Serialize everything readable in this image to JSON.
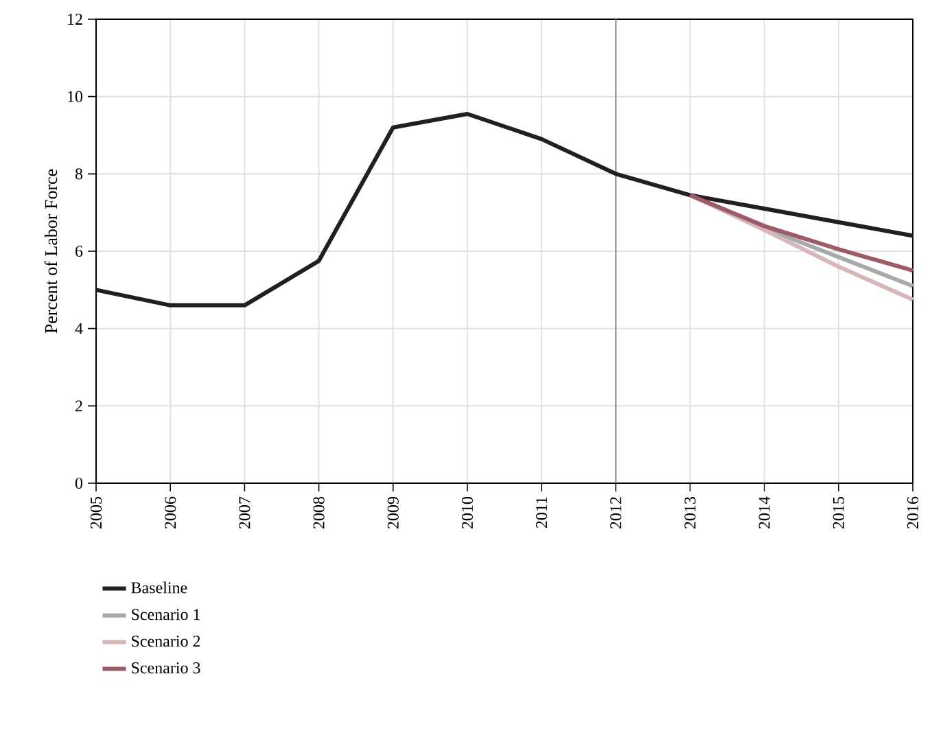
{
  "chart_data": {
    "type": "line",
    "ylabel": "Percent of Labor Force",
    "xlim": [
      2005,
      2016
    ],
    "xticks": [
      2005,
      2006,
      2007,
      2008,
      2009,
      2010,
      2011,
      2012,
      2013,
      2014,
      2015,
      2016
    ],
    "ylim": [
      0,
      12
    ],
    "yticks": [
      0,
      2,
      4,
      6,
      8,
      10,
      12
    ],
    "grid": true,
    "legend": "bottom left",
    "ref_lines": [
      {
        "axis": "x",
        "value": 2012,
        "color": "#8c8c8c"
      }
    ],
    "series": [
      {
        "name": "Baseline",
        "color": "#231f20",
        "x": [
          2005,
          2006,
          2007,
          2008,
          2009,
          2010,
          2011,
          2012,
          2013,
          2014,
          2015,
          2016
        ],
        "values": [
          5.0,
          4.6,
          4.6,
          5.75,
          9.2,
          9.55,
          8.9,
          8.0,
          7.45,
          7.1,
          6.75,
          6.4
        ]
      },
      {
        "name": "Scenario 1",
        "color": "#a7a9ac",
        "x": [
          2013,
          2014,
          2015,
          2016
        ],
        "values": [
          7.45,
          6.6,
          5.85,
          5.1
        ]
      },
      {
        "name": "Scenario 2",
        "color": "#d7b5b9",
        "x": [
          2013,
          2014,
          2015,
          2016
        ],
        "values": [
          7.45,
          6.55,
          5.6,
          4.75
        ]
      },
      {
        "name": "Scenario 3",
        "color": "#9b5b67",
        "x": [
          2013,
          2014,
          2015,
          2016
        ],
        "values": [
          7.45,
          6.65,
          6.05,
          5.5
        ]
      }
    ]
  }
}
